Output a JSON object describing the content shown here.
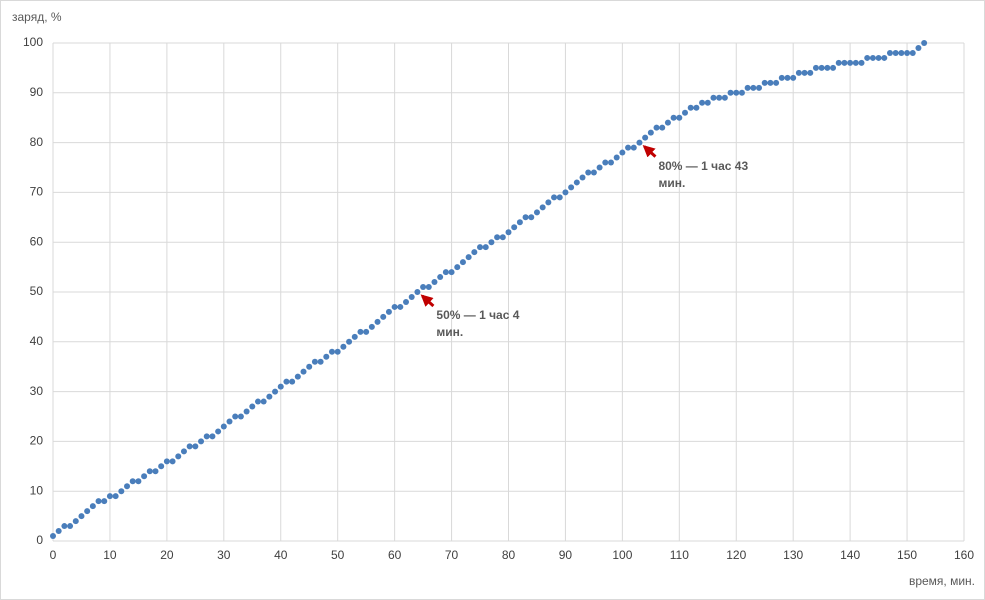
{
  "chart_data": {
    "type": "scatter",
    "y_label": "заряд, %",
    "x_label": "время, мин.",
    "color": "#4a7ebb",
    "grid": true,
    "xlim": [
      0,
      160
    ],
    "xticks": [
      0,
      10,
      20,
      30,
      40,
      50,
      60,
      70,
      80,
      90,
      100,
      110,
      120,
      130,
      140,
      150,
      160
    ],
    "ylim": [
      0,
      100
    ],
    "yticks": [
      0,
      10,
      20,
      30,
      40,
      50,
      60,
      70,
      80,
      90,
      100
    ],
    "x": [
      0,
      1,
      2,
      3,
      4,
      5,
      6,
      7,
      8,
      9,
      10,
      11,
      12,
      13,
      14,
      15,
      16,
      17,
      18,
      19,
      20,
      21,
      22,
      23,
      24,
      25,
      26,
      27,
      28,
      29,
      30,
      31,
      32,
      33,
      34,
      35,
      36,
      37,
      38,
      39,
      40,
      41,
      42,
      43,
      44,
      45,
      46,
      47,
      48,
      49,
      50,
      51,
      52,
      53,
      54,
      55,
      56,
      57,
      58,
      59,
      60,
      61,
      62,
      63,
      64,
      65,
      66,
      67,
      68,
      69,
      70,
      71,
      72,
      73,
      74,
      75,
      76,
      77,
      78,
      79,
      80,
      81,
      82,
      83,
      84,
      85,
      86,
      87,
      88,
      89,
      90,
      91,
      92,
      93,
      94,
      95,
      96,
      97,
      98,
      99,
      100,
      101,
      102,
      103,
      104,
      105,
      106,
      107,
      108,
      109,
      110,
      111,
      112,
      113,
      114,
      115,
      116,
      117,
      118,
      119,
      120,
      121,
      122,
      123,
      124,
      125,
      126,
      127,
      128,
      129,
      130,
      131,
      132,
      133,
      134,
      135,
      136,
      137,
      138,
      139,
      140,
      141,
      142,
      143,
      144,
      145,
      146,
      147,
      148,
      149,
      150,
      151,
      152,
      153
    ],
    "values": [
      1,
      2,
      3,
      3,
      4,
      5,
      6,
      7,
      8,
      8,
      9,
      9,
      10,
      11,
      12,
      12,
      13,
      14,
      14,
      15,
      16,
      16,
      17,
      18,
      19,
      19,
      20,
      21,
      21,
      22,
      23,
      24,
      25,
      25,
      26,
      27,
      28,
      28,
      29,
      30,
      31,
      32,
      32,
      33,
      34,
      35,
      36,
      36,
      37,
      38,
      38,
      39,
      40,
      41,
      42,
      42,
      43,
      44,
      45,
      46,
      47,
      47,
      48,
      49,
      50,
      51,
      51,
      52,
      53,
      54,
      54,
      55,
      56,
      57,
      58,
      59,
      59,
      60,
      61,
      61,
      62,
      63,
      64,
      65,
      65,
      66,
      67,
      68,
      69,
      69,
      70,
      71,
      72,
      73,
      74,
      74,
      75,
      76,
      76,
      77,
      78,
      79,
      79,
      80,
      81,
      82,
      83,
      83,
      84,
      85,
      85,
      86,
      87,
      87,
      88,
      88,
      89,
      89,
      89,
      90,
      90,
      90,
      91,
      91,
      91,
      92,
      92,
      92,
      93,
      93,
      93,
      94,
      94,
      94,
      95,
      95,
      95,
      95,
      96,
      96,
      96,
      96,
      96,
      97,
      97,
      97,
      97,
      98,
      98,
      98,
      98,
      98,
      99,
      100
    ],
    "annotations": [
      {
        "text": "50% — 1 час 4 мин.",
        "x": 64,
        "y": 50,
        "color": "#c00000"
      },
      {
        "text": "80% — 1 час 43 мин.",
        "x": 103,
        "y": 80,
        "color": "#c00000"
      }
    ]
  }
}
